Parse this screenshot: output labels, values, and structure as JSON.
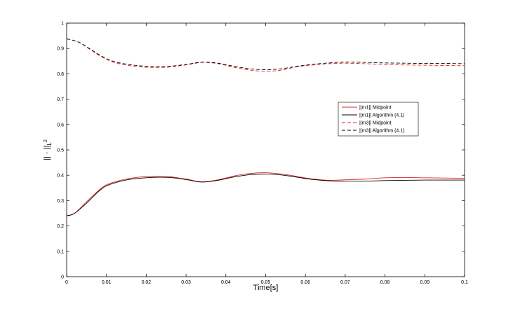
{
  "chart_data": {
    "type": "line",
    "xlabel": "Time[s]",
    "ylabel_main": "|| · ||",
    "ylabel_sub": "L",
    "ylabel_sup": "2",
    "xlim": [
      0,
      0.1
    ],
    "ylim": [
      0,
      1
    ],
    "xticks": [
      0,
      0.01,
      0.02,
      0.03,
      0.04,
      0.05,
      0.06,
      0.07,
      0.08,
      0.09,
      0.1
    ],
    "xtick_labels": [
      "0",
      "0.01",
      "0.02",
      "0.03",
      "0.04",
      "0.05",
      "0.06",
      "0.07",
      "0.08",
      "0.09",
      "0.1"
    ],
    "yticks": [
      0,
      0.1,
      0.2,
      0.3,
      0.4,
      0.5,
      0.6,
      0.7,
      0.8,
      0.9,
      1
    ],
    "ytick_labels": [
      "0",
      "0.1",
      "0.2",
      "0.3",
      "0.4",
      "0.5",
      "0.6",
      "0.7",
      "0.8",
      "0.9",
      "1"
    ],
    "grid": false,
    "legend_position": "right, inside",
    "series": [
      {
        "name": "||m1||  Midpoint",
        "color": "#e02020",
        "dash": "solid",
        "x": [
          0,
          0.002,
          0.005,
          0.008,
          0.01,
          0.013,
          0.016,
          0.02,
          0.023,
          0.026,
          0.03,
          0.034,
          0.038,
          0.042,
          0.046,
          0.05,
          0.054,
          0.058,
          0.062,
          0.066,
          0.07,
          0.075,
          0.08,
          0.085,
          0.09,
          0.095,
          0.1
        ],
        "y": [
          0.24,
          0.25,
          0.295,
          0.34,
          0.362,
          0.378,
          0.388,
          0.395,
          0.396,
          0.394,
          0.385,
          0.374,
          0.382,
          0.397,
          0.407,
          0.41,
          0.405,
          0.395,
          0.385,
          0.38,
          0.382,
          0.385,
          0.39,
          0.391,
          0.39,
          0.389,
          0.388
        ]
      },
      {
        "name": "||m1||  Algorithm (4.1)",
        "color": "#000000",
        "dash": "solid",
        "x": [
          0,
          0.002,
          0.005,
          0.008,
          0.01,
          0.013,
          0.016,
          0.02,
          0.023,
          0.026,
          0.03,
          0.034,
          0.038,
          0.042,
          0.046,
          0.05,
          0.054,
          0.058,
          0.062,
          0.066,
          0.07,
          0.075,
          0.08,
          0.085,
          0.09,
          0.095,
          0.1
        ],
        "y": [
          0.24,
          0.25,
          0.29,
          0.336,
          0.358,
          0.374,
          0.384,
          0.39,
          0.392,
          0.391,
          0.383,
          0.373,
          0.38,
          0.393,
          0.402,
          0.405,
          0.401,
          0.392,
          0.383,
          0.378,
          0.377,
          0.377,
          0.379,
          0.38,
          0.381,
          0.381,
          0.381
        ]
      },
      {
        "name": "||m3|| Midpoint",
        "color": "#e02020",
        "dash": "dashed",
        "x": [
          0,
          0.003,
          0.006,
          0.009,
          0.012,
          0.016,
          0.02,
          0.025,
          0.03,
          0.034,
          0.038,
          0.042,
          0.046,
          0.05,
          0.054,
          0.058,
          0.062,
          0.066,
          0.07,
          0.075,
          0.08,
          0.085,
          0.09,
          0.095,
          0.1
        ],
        "y": [
          0.938,
          0.925,
          0.895,
          0.865,
          0.845,
          0.832,
          0.826,
          0.826,
          0.835,
          0.845,
          0.84,
          0.826,
          0.815,
          0.81,
          0.815,
          0.828,
          0.835,
          0.84,
          0.842,
          0.84,
          0.837,
          0.835,
          0.834,
          0.833,
          0.832
        ]
      },
      {
        "name": "||m3||  Algorithm (4.1)",
        "color": "#000000",
        "dash": "dashed",
        "x": [
          0,
          0.003,
          0.006,
          0.009,
          0.012,
          0.016,
          0.02,
          0.025,
          0.03,
          0.034,
          0.038,
          0.042,
          0.046,
          0.05,
          0.054,
          0.058,
          0.062,
          0.066,
          0.07,
          0.075,
          0.08,
          0.085,
          0.09,
          0.095,
          0.1
        ],
        "y": [
          0.938,
          0.925,
          0.897,
          0.868,
          0.848,
          0.836,
          0.83,
          0.829,
          0.837,
          0.846,
          0.842,
          0.83,
          0.82,
          0.816,
          0.82,
          0.83,
          0.838,
          0.843,
          0.846,
          0.845,
          0.843,
          0.842,
          0.841,
          0.841,
          0.84
        ]
      }
    ]
  }
}
